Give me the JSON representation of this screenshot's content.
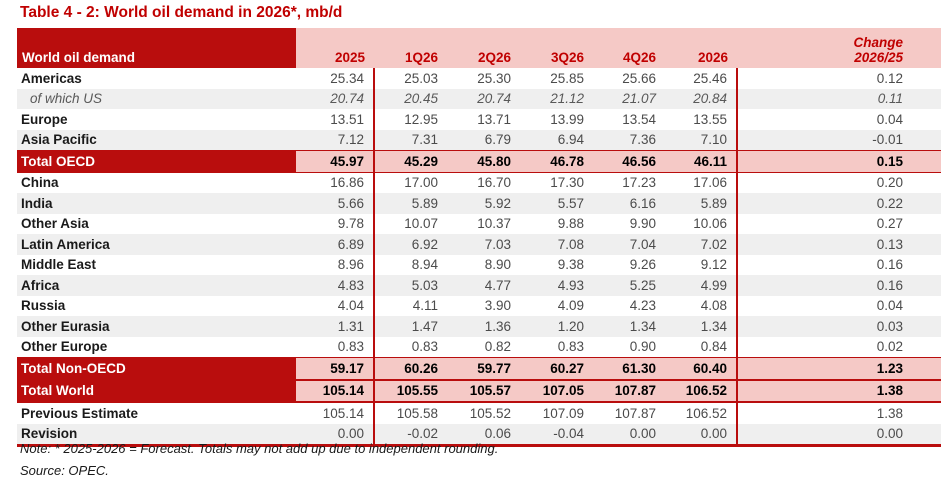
{
  "title": "Table 4 - 2: World oil demand in 2026*, mb/d",
  "colors": {
    "dark_red": "#B90D0D",
    "title_red": "#C00000",
    "pink": "#F5C9C6",
    "stripe": "#EFEFEF"
  },
  "table": {
    "header": {
      "label": "World oil demand",
      "columns": [
        "2025",
        "1Q26",
        "2Q26",
        "3Q26",
        "4Q26",
        "2026"
      ],
      "change_header": {
        "line1": "Change",
        "line2": "2026/25"
      }
    },
    "rows": [
      {
        "label": "Americas",
        "type": "plain",
        "values": [
          "25.34",
          "25.03",
          "25.30",
          "25.85",
          "25.66",
          "25.46",
          "0.12"
        ]
      },
      {
        "label": "of which US",
        "type": "sub",
        "values": [
          "20.74",
          "20.45",
          "20.74",
          "21.12",
          "21.07",
          "20.84",
          "0.11"
        ]
      },
      {
        "label": "Europe",
        "type": "plain",
        "values": [
          "13.51",
          "12.95",
          "13.71",
          "13.99",
          "13.54",
          "13.55",
          "0.04"
        ]
      },
      {
        "label": "Asia Pacific",
        "type": "alt",
        "values": [
          "7.12",
          "7.31",
          "6.79",
          "6.94",
          "7.36",
          "7.10",
          "-0.01"
        ]
      },
      {
        "label": "Total OECD",
        "type": "total",
        "values": [
          "45.97",
          "45.29",
          "45.80",
          "46.78",
          "46.56",
          "46.11",
          "0.15"
        ]
      },
      {
        "label": "China",
        "type": "plain",
        "values": [
          "16.86",
          "17.00",
          "16.70",
          "17.30",
          "17.23",
          "17.06",
          "0.20"
        ]
      },
      {
        "label": "India",
        "type": "alt",
        "values": [
          "5.66",
          "5.89",
          "5.92",
          "5.57",
          "6.16",
          "5.89",
          "0.22"
        ]
      },
      {
        "label": "Other Asia",
        "type": "plain",
        "values": [
          "9.78",
          "10.07",
          "10.37",
          "9.88",
          "9.90",
          "10.06",
          "0.27"
        ]
      },
      {
        "label": "Latin America",
        "type": "alt",
        "values": [
          "6.89",
          "6.92",
          "7.03",
          "7.08",
          "7.04",
          "7.02",
          "0.13"
        ]
      },
      {
        "label": "Middle East",
        "type": "plain",
        "values": [
          "8.96",
          "8.94",
          "8.90",
          "9.38",
          "9.26",
          "9.12",
          "0.16"
        ]
      },
      {
        "label": "Africa",
        "type": "alt",
        "values": [
          "4.83",
          "5.03",
          "4.77",
          "4.93",
          "5.25",
          "4.99",
          "0.16"
        ]
      },
      {
        "label": "Russia",
        "type": "plain",
        "values": [
          "4.04",
          "4.11",
          "3.90",
          "4.09",
          "4.23",
          "4.08",
          "0.04"
        ]
      },
      {
        "label": "Other Eurasia",
        "type": "alt",
        "values": [
          "1.31",
          "1.47",
          "1.36",
          "1.20",
          "1.34",
          "1.34",
          "0.03"
        ]
      },
      {
        "label": "Other Europe",
        "type": "plain",
        "values": [
          "0.83",
          "0.83",
          "0.82",
          "0.83",
          "0.90",
          "0.84",
          "0.02"
        ]
      },
      {
        "label": "Total Non-OECD",
        "type": "total",
        "values": [
          "59.17",
          "60.26",
          "59.77",
          "60.27",
          "61.30",
          "60.40",
          "1.23"
        ]
      },
      {
        "label": "Total World",
        "type": "total_world",
        "values": [
          "105.14",
          "105.55",
          "105.57",
          "107.05",
          "107.87",
          "106.52",
          "1.38"
        ]
      },
      {
        "label": "Previous Estimate",
        "type": "plain",
        "values": [
          "105.14",
          "105.58",
          "105.52",
          "107.09",
          "107.87",
          "106.52",
          "1.38"
        ]
      },
      {
        "label": "Revision",
        "type": "alt",
        "values": [
          "0.00",
          "-0.02",
          "0.06",
          "-0.04",
          "0.00",
          "0.00",
          "0.00"
        ]
      }
    ]
  },
  "note": "Note: * 2025-2026 = Forecast. Totals may not add up due to independent rounding.",
  "source": "Source: OPEC."
}
